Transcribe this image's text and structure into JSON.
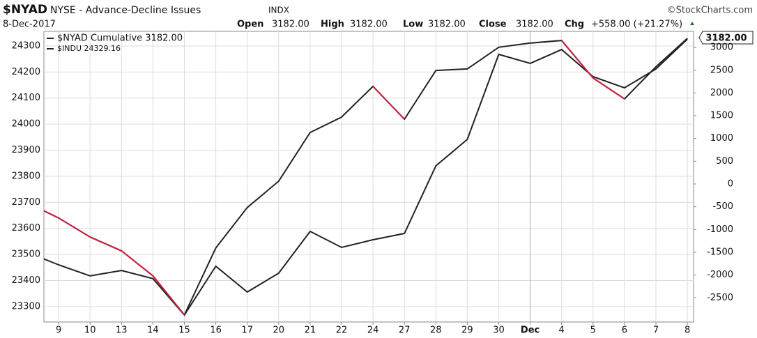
{
  "chart_data": {
    "type": "line",
    "symbol": "$NYAD",
    "title": "NYSE - Advance-Decline Issues",
    "exchange": "INDX",
    "watermark": "©StockCharts.com",
    "date": "8-Dec-2017",
    "quote": [
      {
        "label": "Open",
        "value": "3182.00"
      },
      {
        "label": "High",
        "value": "3182.00"
      },
      {
        "label": "Low",
        "value": "3182.00"
      },
      {
        "label": "Close",
        "value": "3182.00"
      },
      {
        "label": "Chg",
        "value": "+558.00 (+21.27%)"
      }
    ],
    "categories": [
      null,
      "9",
      "10",
      "13",
      "14",
      "15",
      "16",
      "17",
      "20",
      "21",
      "22",
      "24",
      "27",
      "28",
      "29",
      "30",
      "Dec",
      "4",
      "5",
      "6",
      "7",
      "8"
    ],
    "series": [
      {
        "name": "$NYAD Cumulative 3182.00",
        "color": "#222222",
        "axis": "y2",
        "values": [
          -1500,
          -1776,
          -2020,
          -1900,
          -2080,
          -2880,
          -1807,
          -2374,
          -1960,
          -1041,
          -1393,
          -1225,
          -1087,
          398,
          980,
          2848,
          2650,
          2955,
          2358,
          2113,
          2527,
          3182
        ]
      },
      {
        "name": "$INDU 24329.16",
        "color": "#222222",
        "down_color": "#cc1f3f",
        "values": [
          23699,
          23640,
          23567,
          23514,
          23418,
          23268,
          23525,
          23680,
          23781,
          23968,
          24027,
          24145,
          24019,
          24206,
          24212,
          24295,
          24311,
          24321,
          24177,
          24097,
          24220,
          24329.16
        ]
      }
    ],
    "ylim": [
      23241,
      24356
    ],
    "yticks": [
      23300,
      23400,
      23500,
      23600,
      23700,
      23800,
      23900,
      24000,
      24100,
      24200,
      24300
    ],
    "y2lim": [
      -3032,
      3354
    ],
    "y2ticks": [
      -2500,
      -2000,
      -1500,
      -1000,
      -500,
      0,
      500,
      1000,
      1500,
      2000,
      2500,
      3000
    ],
    "grid": true
  }
}
